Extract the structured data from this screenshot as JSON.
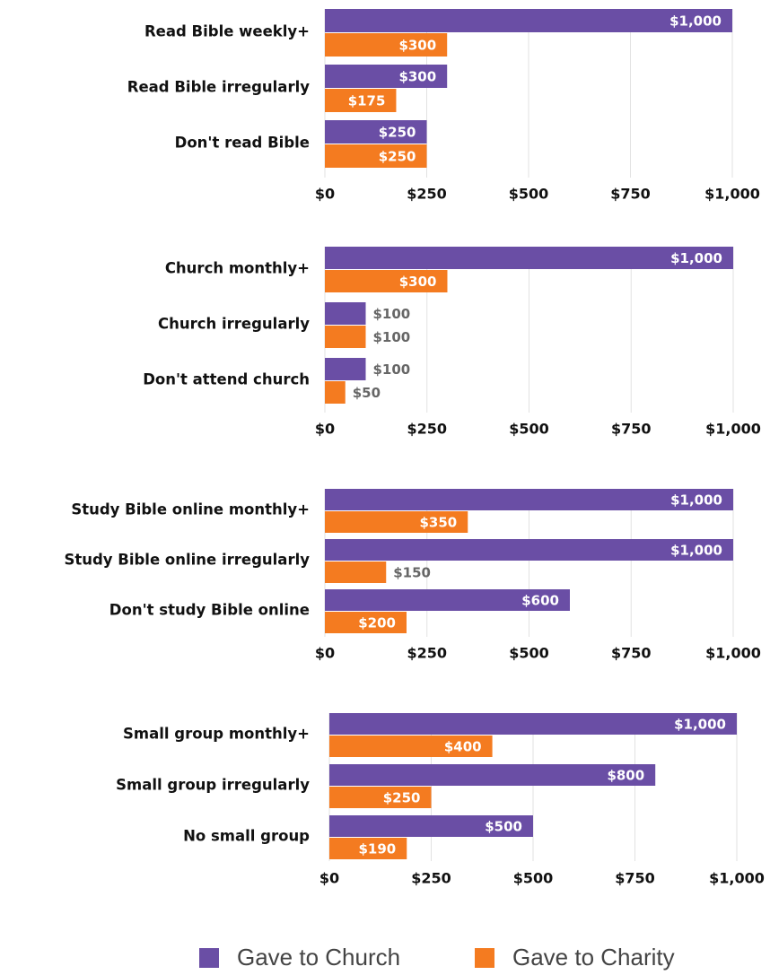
{
  "legend": [
    {
      "name": "Gave to Church",
      "color": "#6a4ea5"
    },
    {
      "name": "Gave to Charity",
      "color": "#f47b20"
    }
  ],
  "chart_data": [
    {
      "type": "bar",
      "orientation": "horizontal",
      "grid": true,
      "categories": [
        "Read Bible weekly+",
        "Read Bible irregularly",
        "Don't read Bible"
      ],
      "series": [
        {
          "values": [
            1000,
            300,
            250
          ],
          "value_labels": [
            "$1,000",
            "$300",
            "$250"
          ]
        },
        {
          "values": [
            300,
            175,
            250
          ],
          "value_labels": [
            "$300",
            "$175",
            "$250"
          ]
        }
      ],
      "xlim": [
        0,
        1000
      ],
      "xticks": [
        {
          "value": 0,
          "label": "$0"
        },
        {
          "value": 250,
          "label": "$250"
        },
        {
          "value": 500,
          "label": "$500"
        },
        {
          "value": 750,
          "label": "$750"
        },
        {
          "value": 1000,
          "label": "$1,000"
        }
      ]
    },
    {
      "type": "bar",
      "orientation": "horizontal",
      "grid": true,
      "categories": [
        "Church monthly+",
        "Church irregularly",
        "Don't attend church"
      ],
      "series": [
        {
          "values": [
            1000,
            100,
            100
          ],
          "value_labels": [
            "$1,000",
            "$100",
            "$100"
          ]
        },
        {
          "values": [
            300,
            100,
            50
          ],
          "value_labels": [
            "$300",
            "$100",
            "$50"
          ]
        }
      ],
      "xlim": [
        0,
        1000
      ],
      "xticks": [
        {
          "value": 0,
          "label": "$0"
        },
        {
          "value": 250,
          "label": "$250"
        },
        {
          "value": 500,
          "label": "$500"
        },
        {
          "value": 750,
          "label": "$750"
        },
        {
          "value": 1000,
          "label": "$1,000"
        }
      ]
    },
    {
      "type": "bar",
      "orientation": "horizontal",
      "grid": true,
      "categories": [
        "Study Bible online monthly+",
        "Study Bible online irregularly",
        "Don't study Bible online"
      ],
      "series": [
        {
          "values": [
            1000,
            1000,
            600
          ],
          "value_labels": [
            "$1,000",
            "$1,000",
            "$600"
          ]
        },
        {
          "values": [
            350,
            150,
            200
          ],
          "value_labels": [
            "$350",
            "$150",
            "$200"
          ]
        }
      ],
      "xlim": [
        0,
        1000
      ],
      "xticks": [
        {
          "value": 0,
          "label": "$0"
        },
        {
          "value": 250,
          "label": "$250"
        },
        {
          "value": 500,
          "label": "$500"
        },
        {
          "value": 750,
          "label": "$750"
        },
        {
          "value": 1000,
          "label": "$1,000"
        }
      ]
    },
    {
      "type": "bar",
      "orientation": "horizontal",
      "grid": true,
      "categories": [
        "Small group monthly+",
        "Small group irregularly",
        "No small group"
      ],
      "series": [
        {
          "values": [
            1000,
            800,
            500
          ],
          "value_labels": [
            "$1,000",
            "$800",
            "$500"
          ]
        },
        {
          "values": [
            400,
            250,
            190
          ],
          "value_labels": [
            "$400",
            "$250",
            "$190"
          ]
        }
      ],
      "xlim": [
        0,
        1000
      ],
      "xticks": [
        {
          "value": 0,
          "label": "$0"
        },
        {
          "value": 250,
          "label": "$250"
        },
        {
          "value": 500,
          "label": "$500"
        },
        {
          "value": 750,
          "label": "$750"
        },
        {
          "value": 1000,
          "label": "$1,000"
        }
      ]
    }
  ]
}
